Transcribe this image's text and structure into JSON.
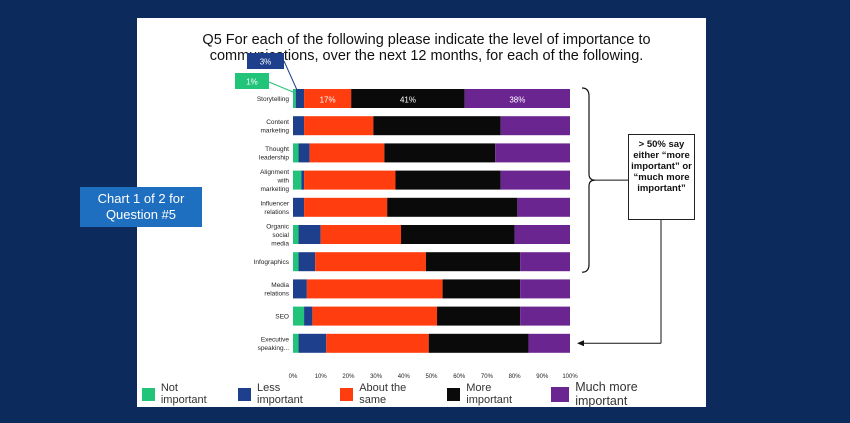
{
  "title": "Q5 For each of the following please indicate the level of importance to communications, over the next 12 months, for each of the following.",
  "callout": "Chart 1 of 2 for Question #5",
  "note": "> 50% say either “more important” or “much more important”",
  "annotations": {
    "less_important_first": "3%",
    "not_important_first": "1%"
  },
  "colors": {
    "Not important": "#22c47a",
    "Less important": "#1e3f8c",
    "About the same": "#ff3d0f",
    "More important": "#0a0a0a",
    "Much more important": "#6b2590"
  },
  "chart_data": {
    "type": "bar",
    "orientation": "horizontal-stacked",
    "categories": [
      "Storytelling",
      "Content marketing",
      "Thought leadership",
      "Alignment with marketing",
      "Influencer relations",
      "Organic social media",
      "Infographics",
      "Media relations",
      "SEO",
      "Executive speaking..."
    ],
    "series": [
      {
        "name": "Not important",
        "values": [
          1,
          0,
          2,
          3,
          0,
          2,
          2,
          0,
          4,
          2
        ]
      },
      {
        "name": "Less important",
        "values": [
          3,
          4,
          4,
          1,
          4,
          8,
          6,
          5,
          3,
          10
        ]
      },
      {
        "name": "About the same",
        "values": [
          17,
          25,
          27,
          33,
          30,
          29,
          40,
          49,
          45,
          37
        ]
      },
      {
        "name": "More important",
        "values": [
          41,
          46,
          40,
          38,
          47,
          41,
          34,
          28,
          30,
          36
        ]
      },
      {
        "name": "Much more important",
        "values": [
          38,
          25,
          27,
          25,
          19,
          20,
          18,
          18,
          18,
          15
        ]
      }
    ],
    "data_labels": [
      {
        "category": "Storytelling",
        "series": "About the same",
        "label": "17%"
      },
      {
        "category": "Storytelling",
        "series": "More important",
        "label": "41%"
      },
      {
        "category": "Storytelling",
        "series": "Much more important",
        "label": "38%"
      }
    ],
    "x_ticks": [
      "0%",
      "10%",
      "20%",
      "30%",
      "40%",
      "50%",
      "60%",
      "70%",
      "80%",
      "90%",
      "100%"
    ],
    "xlim": [
      0,
      100
    ],
    "legend": "bottom"
  }
}
